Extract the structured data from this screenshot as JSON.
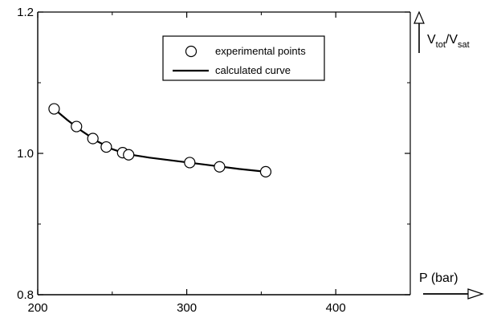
{
  "chart_data": {
    "type": "line",
    "xlim": [
      200,
      450
    ],
    "ylim": [
      0.8,
      1.2
    ],
    "x_ticks": [
      200,
      300,
      400
    ],
    "y_ticks": [
      0.8,
      1.0,
      1.2
    ],
    "x_tick_labels": [
      "200",
      "300",
      "400"
    ],
    "y_tick_labels": [
      "0.8",
      "1.0",
      "1.2"
    ],
    "xlabel": "P (bar)",
    "ylabel": {
      "main": "V",
      "sub1": "tot",
      "sep": "/V",
      "sub2": "sat"
    },
    "grid": false,
    "legend_position": "top-right",
    "series": [
      {
        "name": "experimental points",
        "kind": "markers",
        "x": [
          211,
          226,
          237,
          246,
          257,
          261,
          302,
          322,
          353
        ],
        "y": [
          1.063,
          1.038,
          1.021,
          1.009,
          1.001,
          0.998,
          0.987,
          0.981,
          0.974
        ]
      },
      {
        "name": "calculated curve",
        "kind": "line",
        "x": [
          211,
          220,
          230,
          240,
          250,
          260,
          275,
          290,
          305,
          320,
          335,
          353
        ],
        "y": [
          1.063,
          1.047,
          1.031,
          1.017,
          1.006,
          0.999,
          0.994,
          0.99,
          0.986,
          0.982,
          0.978,
          0.974
        ]
      }
    ]
  }
}
